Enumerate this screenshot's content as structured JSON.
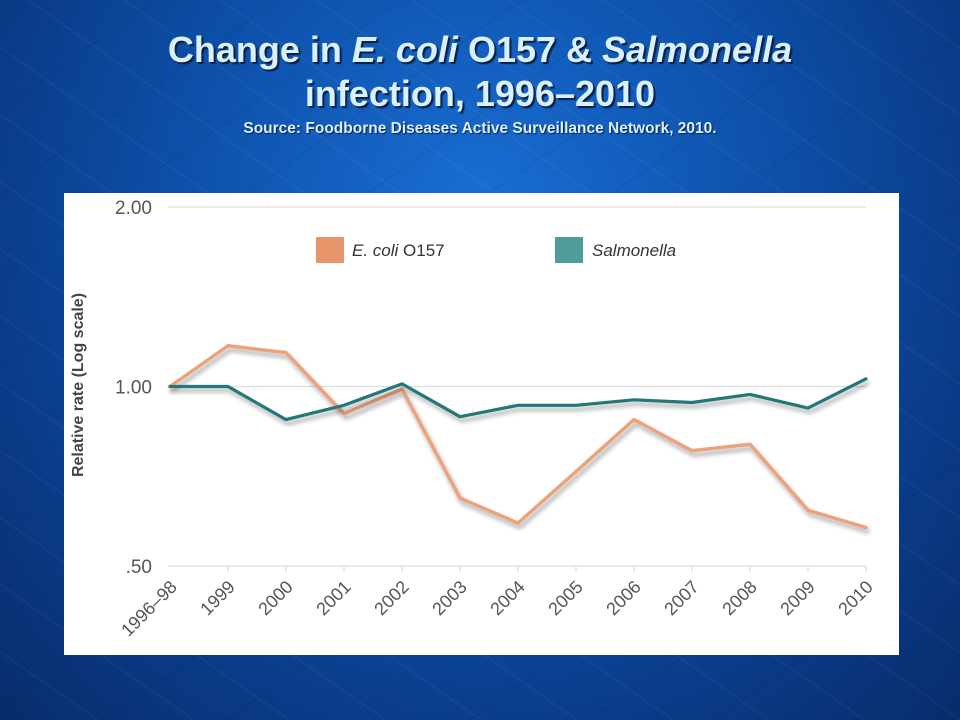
{
  "title": {
    "part1": "Change in ",
    "ecoli_italic": "E. coli",
    "part2": " O157 & ",
    "salmonella_italic": "Salmonella",
    "line2": "infection, 1996–2010",
    "source": "Source: Foodborne Diseases Active Surveillance Network, 2010."
  },
  "colors": {
    "ecoli": "#eba37c",
    "salmonella": "#217779",
    "ecoli_legend": "#e8946a",
    "salmonella_legend": "#4f9b9c",
    "grid": "#dddddd",
    "tick_text": "#555555",
    "ylabel_text": "#444444"
  },
  "chart_data": {
    "type": "line",
    "ylabel": "Relative rate (Log scale)",
    "xlabel": "",
    "yscale": "log",
    "ylim": [
      0.5,
      2.0
    ],
    "yticks": [
      {
        "value": 2.0,
        "label": "2.00"
      },
      {
        "value": 1.0,
        "label": "1.00"
      },
      {
        "value": 0.5,
        "label": ".50"
      }
    ],
    "grid": true,
    "legend": {
      "placement": "top",
      "ecoli_label_italic": "E. coli",
      "ecoli_label_rest": " O157",
      "salmonella_label": "Salmonella"
    },
    "categories": [
      "1996–98",
      "1999",
      "2000",
      "2001",
      "2002",
      "2003",
      "2004",
      "2005",
      "2006",
      "2007",
      "2008",
      "2009",
      "2010"
    ],
    "series": [
      {
        "name": "E. coli O157",
        "key": "ecoli",
        "values": [
          1.0,
          1.17,
          1.14,
          0.9,
          0.99,
          0.65,
          0.59,
          0.72,
          0.88,
          0.78,
          0.8,
          0.62,
          0.58
        ]
      },
      {
        "name": "Salmonella",
        "key": "salmonella",
        "values": [
          1.0,
          1.0,
          0.88,
          0.93,
          1.01,
          0.89,
          0.93,
          0.93,
          0.95,
          0.94,
          0.97,
          0.92,
          1.03
        ]
      }
    ]
  }
}
